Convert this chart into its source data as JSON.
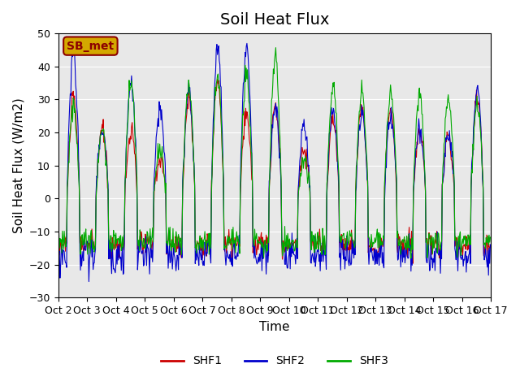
{
  "title": "Soil Heat Flux",
  "ylabel": "Soil Heat Flux (W/m2)",
  "xlabel": "Time",
  "xlim": [
    0,
    360
  ],
  "ylim": [
    -30,
    50
  ],
  "yticks": [
    -30,
    -20,
    -10,
    0,
    10,
    20,
    30,
    40,
    50
  ],
  "xtick_labels": [
    "Oct 2",
    "Oct 3",
    "Oct 4",
    "Oct 5",
    "Oct 6",
    "Oct 7",
    "Oct 8",
    "Oct 9",
    "Oct 10",
    "Oct 11",
    "Oct 12",
    "Oct 13",
    "Oct 14",
    "Oct 15",
    "Oct 16",
    "Oct 17"
  ],
  "colors": {
    "SHF1": "#cc0000",
    "SHF2": "#0000cc",
    "SHF3": "#00aa00"
  },
  "legend_labels": [
    "SHF1",
    "SHF2",
    "SHF3"
  ],
  "annotation_text": "SB_met",
  "annotation_color": "#8B0000",
  "annotation_bg": "#d4a800",
  "background_color": "#e8e8e8",
  "title_fontsize": 14,
  "axis_fontsize": 11,
  "tick_fontsize": 9
}
